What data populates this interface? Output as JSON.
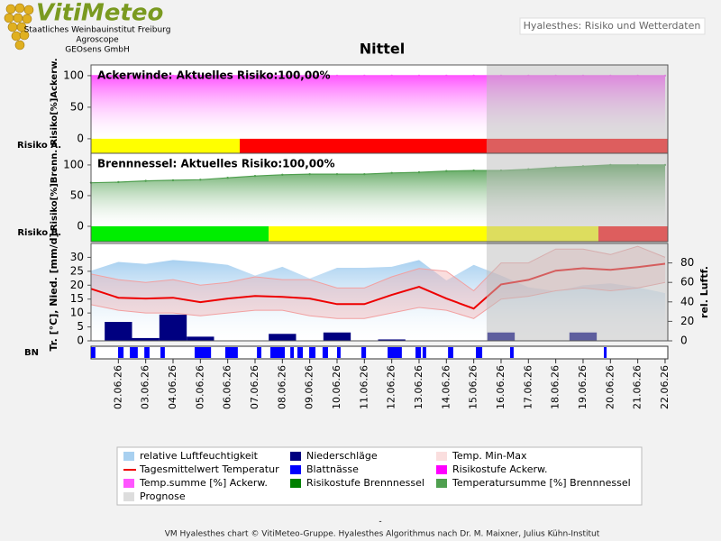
{
  "header": {
    "logo": "VitiMeteo",
    "orgs": [
      "Staatliches Weinbauinstitut Freiburg",
      "Agroscope",
      "GEOsens GmbH"
    ],
    "page_title": "Hyalesthes: Risiko und Wetterdaten"
  },
  "chart_data": {
    "type": "panels",
    "title": "Nittel",
    "xlim": [
      1,
      22.1
    ],
    "xticks": [
      {
        "value": 2,
        "label": "02.06.26"
      },
      {
        "value": 3,
        "label": "03.06.26"
      },
      {
        "value": 4,
        "label": "04.06.26"
      },
      {
        "value": 5,
        "label": "05.06.26"
      },
      {
        "value": 6,
        "label": "06.06.26"
      },
      {
        "value": 7,
        "label": "07.06.26"
      },
      {
        "value": 8,
        "label": "08.06.26"
      },
      {
        "value": 9,
        "label": "09.06.26"
      },
      {
        "value": 10,
        "label": "10.06.26"
      },
      {
        "value": 11,
        "label": "11.06.26"
      },
      {
        "value": 12,
        "label": "12.06.26"
      },
      {
        "value": 13,
        "label": "13.06.26"
      },
      {
        "value": 14,
        "label": "14.06.26"
      },
      {
        "value": 15,
        "label": "15.06.26"
      },
      {
        "value": 16,
        "label": "16.06.26"
      },
      {
        "value": 17,
        "label": "17.06.26"
      },
      {
        "value": 18,
        "label": "18.06.26"
      },
      {
        "value": 19,
        "label": "19.06.26"
      },
      {
        "value": 20,
        "label": "20.06.26"
      },
      {
        "value": 21,
        "label": "21.06.26"
      },
      {
        "value": 22,
        "label": "22.06.26"
      }
    ],
    "prognose": {
      "name": "Prognose",
      "color": "#bbbbbb",
      "from": 15.47,
      "to": 22.1
    },
    "panels": [
      {
        "type": "area",
        "ylabel": "Risiko[%]Ackerw.",
        "annotation": "Ackerwinde:  Aktuelles Risiko:100,00%",
        "ylim": [
          -23,
          117
        ],
        "yticks": [
          0,
          50,
          100
        ],
        "series": [
          {
            "name": "Temp.summe [%] Ackerw.",
            "type": "area",
            "color": "#ff55ff",
            "x": [
              1,
              2,
              3,
              4,
              5,
              6,
              7,
              8,
              9,
              10,
              11,
              12,
              13,
              14,
              15,
              16,
              17,
              18,
              19,
              20,
              21,
              22
            ],
            "values": [
              100,
              100,
              100,
              100,
              100,
              100,
              100,
              100,
              100,
              100,
              100,
              100,
              100,
              100,
              100,
              100,
              100,
              100,
              100,
              100,
              100,
              100
            ]
          }
        ],
        "risk": {
          "name": "Risikostufe Ackerw.",
          "label": "Risiko A.",
          "color": "#ff00ff",
          "segments": [
            {
              "from": 1,
              "to": 6.44,
              "color": "#ffff00"
            },
            {
              "from": 6.44,
              "to": 22.1,
              "color": "#ff0000"
            }
          ]
        }
      },
      {
        "type": "area",
        "ylabel": "Risiko[%]Brenn.",
        "annotation": "Brennnessel:  Aktuelles Risiko:100,00%",
        "ylim": [
          -25,
          119
        ],
        "yticks": [
          0,
          50,
          100
        ],
        "series": [
          {
            "name": "Temperatursumme [%] Brennnessel",
            "type": "area",
            "color": "#4f9f4f",
            "x": [
              1,
              2,
              3,
              4,
              5,
              6,
              7,
              8,
              9,
              10,
              11,
              12,
              13,
              14,
              15,
              16,
              17,
              18,
              19,
              20,
              21,
              22
            ],
            "values": [
              71,
              72,
              74,
              75,
              76,
              79,
              82,
              84,
              85,
              85,
              85,
              87,
              88,
              90,
              91,
              91,
              93,
              96,
              98,
              100,
              100,
              100
            ]
          }
        ],
        "risk": {
          "name": "Risikostufe Brennnessel",
          "label": "Risiko B.",
          "color": "#008000",
          "segments": [
            {
              "from": 1,
              "to": 7.5,
              "color": "#00ee00"
            },
            {
              "from": 7.5,
              "to": 19.56,
              "color": "#ffff00"
            },
            {
              "from": 19.56,
              "to": 22.1,
              "color": "#ff0000"
            }
          ]
        }
      },
      {
        "type": "weather",
        "ylabel": "Tr. [°C], Nied. [mm/d]",
        "y2label": "rel. Luftf.",
        "ylim": [
          0,
          35
        ],
        "yticks": [
          0,
          5,
          10,
          15,
          20,
          25,
          30
        ],
        "y2lim": [
          0,
          100
        ],
        "y2ticks": [
          0,
          20,
          40,
          60,
          80
        ],
        "series": [
          {
            "name": "relative Luftfeuchtigkeit",
            "type": "area",
            "axis": "y2",
            "color": "#a8d0f0",
            "x": [
              1,
              2,
              3,
              4,
              5,
              6,
              7,
              8,
              9,
              10,
              11,
              12,
              13,
              14,
              15,
              16,
              17,
              18,
              19,
              20,
              21,
              22
            ],
            "values": [
              72,
              81,
              79,
              83,
              81,
              78,
              67,
              76,
              64,
              75,
              75,
              76,
              83,
              62,
              78,
              67,
              55,
              51,
              57,
              59,
              55,
              49
            ]
          },
          {
            "name": "Temp. Min-Max",
            "type": "band",
            "color": "#f2a0a0",
            "x": [
              1,
              2,
              3,
              4,
              5,
              6,
              7,
              8,
              9,
              10,
              11,
              12,
              13,
              14,
              15,
              16,
              17,
              18,
              19,
              20,
              21,
              22
            ],
            "min": [
              13,
              11,
              10,
              10,
              9,
              10,
              11,
              11,
              9,
              8,
              8,
              10,
              12,
              11,
              8,
              15,
              16,
              18,
              19,
              18,
              19,
              21
            ],
            "max": [
              24,
              22,
              21,
              22,
              20,
              21,
              23,
              22,
              22,
              19,
              19,
              23,
              26,
              25,
              18,
              28,
              28,
              33,
              33,
              31,
              34,
              30
            ]
          },
          {
            "name": "Tagesmittelwert Temperatur",
            "type": "line",
            "color": "#ee0000",
            "x": [
              1,
              2,
              3,
              4,
              5,
              6,
              7,
              8,
              9,
              10,
              11,
              12,
              13,
              14,
              15,
              16,
              17,
              18,
              19,
              20,
              21,
              22
            ],
            "values": [
              18.7,
              15.5,
              15.2,
              15.5,
              13.9,
              15.2,
              16.1,
              15.8,
              15.2,
              13.2,
              13.2,
              16.5,
              19.4,
              15.2,
              11.6,
              20.3,
              21.9,
              25.2,
              26.1,
              25.5,
              26.5,
              27.7
            ]
          },
          {
            "name": "Niederschläge",
            "type": "bar",
            "color": "#000080",
            "x": [
              2,
              3,
              4,
              5,
              8,
              10,
              12,
              16,
              19
            ],
            "values": [
              6.8,
              1,
              9.4,
              1.5,
              2.5,
              3,
              0.5,
              3,
              3
            ]
          }
        ],
        "leaf": {
          "name": "Blattnässe",
          "label": "BN",
          "color": "#0000ff",
          "intervals": [
            [
              1,
              1.16
            ],
            [
              1.99,
              2.19
            ],
            [
              2.42,
              2.71
            ],
            [
              2.95,
              3.14
            ],
            [
              3.54,
              3.7
            ],
            [
              4.79,
              5.39
            ],
            [
              5.91,
              6.37
            ],
            [
              7.07,
              7.23
            ],
            [
              7.56,
              8.09
            ],
            [
              8.29,
              8.42
            ],
            [
              8.55,
              8.75
            ],
            [
              8.98,
              9.21
            ],
            [
              9.47,
              9.67
            ],
            [
              10,
              10.13
            ],
            [
              10.89,
              11.06
            ],
            [
              11.85,
              12.37
            ],
            [
              12.87,
              13.07
            ],
            [
              13.13,
              13.26
            ],
            [
              14.06,
              14.25
            ],
            [
              15.08,
              15.31
            ],
            [
              16.33,
              16.46
            ],
            [
              19.76,
              19.86
            ]
          ]
        }
      }
    ]
  },
  "footer": {
    "dash": "-",
    "credit": "VM Hyalesthes chart © VitiMeteo-Gruppe. Hyalesthes Algorithmus nach Dr. M. Maixner, Julius Kühn-Institut"
  }
}
